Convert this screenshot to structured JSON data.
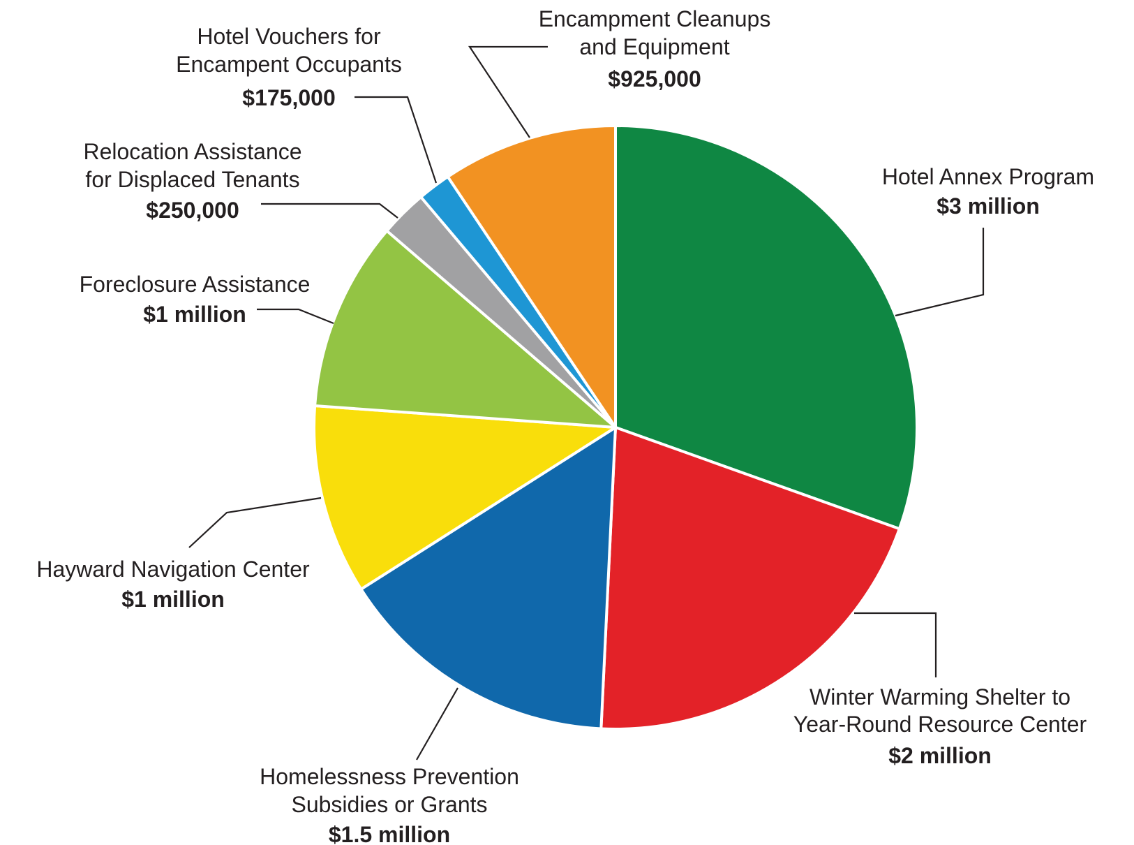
{
  "chart_data": {
    "type": "pie",
    "title": "",
    "slices": [
      {
        "name": "Hotel Annex Program",
        "value_label": "$3 million",
        "value": 3000000,
        "color": "#0f8743"
      },
      {
        "name": "Winter Warming Shelter to Year-Round Resource Center",
        "value_label": "$2 million",
        "value": 2000000,
        "color": "#e32228"
      },
      {
        "name": "Homelessness Prevention Subsidies or Grants",
        "value_label": "$1.5 million",
        "value": 1500000,
        "color": "#1068ab"
      },
      {
        "name": "Hayward Navigation Center",
        "value_label": "$1 million",
        "value": 1000000,
        "color": "#f9de0b"
      },
      {
        "name": "Foreclosure Assistance",
        "value_label": "$1 million",
        "value": 1000000,
        "color": "#93c444"
      },
      {
        "name": "Relocation Assistance for Displaced Tenants",
        "value_label": "$250,000",
        "value": 250000,
        "color": "#a1a1a3"
      },
      {
        "name": "Hotel Vouchers for Encampent Occupants",
        "value_label": "$175,000",
        "value": 175000,
        "color": "#1e96d4"
      },
      {
        "name": "Encampment Cleanups and Equipment",
        "value_label": "$925,000",
        "value": 925000,
        "color": "#f29222"
      }
    ],
    "labels": {
      "hotel_annex": {
        "line1": "Hotel Annex Program",
        "value": "$3 million"
      },
      "winter_shelter": {
        "line1": "Winter Warming Shelter to",
        "line2": "Year-Round Resource Center",
        "value": "$2 million"
      },
      "prevention": {
        "line1": "Homelessness Prevention",
        "line2": "Subsidies or Grants",
        "value": "$1.5 million"
      },
      "navigation": {
        "line1": "Hayward Navigation Center",
        "value": "$1 million"
      },
      "foreclosure": {
        "line1": "Foreclosure Assistance",
        "value": "$1 million"
      },
      "relocation": {
        "line1": "Relocation Assistance",
        "line2": "for Displaced Tenants",
        "value": "$250,000"
      },
      "vouchers": {
        "line1": "Hotel Vouchers for",
        "line2": "Encampent Occupants",
        "value": "$175,000"
      },
      "cleanups": {
        "line1": "Encampment Cleanups",
        "line2": "and Equipment",
        "value": "$925,000"
      }
    },
    "legend": "none",
    "grid": false
  }
}
